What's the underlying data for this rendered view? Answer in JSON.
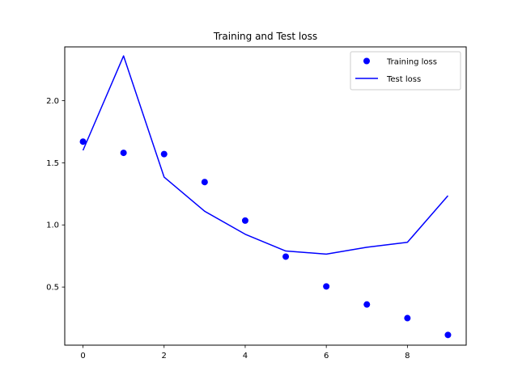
{
  "chart_data": {
    "type": "line",
    "title": "Training and Test loss",
    "xlabel": "",
    "ylabel": "",
    "xlim": [
      -0.45,
      9.45
    ],
    "ylim": [
      0.0325,
      2.4325
    ],
    "x_ticks": [
      0,
      2,
      4,
      6,
      8
    ],
    "y_ticks": [
      0.5,
      1.0,
      1.5,
      2.0
    ],
    "x_tick_labels": [
      "0",
      "2",
      "4",
      "6",
      "8"
    ],
    "y_tick_labels": [
      "0.5",
      "1.0",
      "1.5",
      "2.0"
    ],
    "grid": false,
    "legend_position": "top-right",
    "series": [
      {
        "name": "Training loss",
        "style": "markers",
        "color": "#0000ff",
        "x": [
          0,
          1,
          2,
          3,
          4,
          5,
          6,
          7,
          8,
          9
        ],
        "values": [
          1.67,
          1.58,
          1.57,
          1.345,
          1.035,
          0.745,
          0.505,
          0.36,
          0.25,
          0.115
        ]
      },
      {
        "name": "Test loss",
        "style": "line",
        "color": "#0000ff",
        "x": [
          0,
          1,
          2,
          3,
          4,
          5,
          6,
          7,
          8,
          9
        ],
        "values": [
          1.6,
          2.36,
          1.385,
          1.11,
          0.925,
          0.79,
          0.765,
          0.82,
          0.86,
          1.235
        ]
      }
    ]
  }
}
